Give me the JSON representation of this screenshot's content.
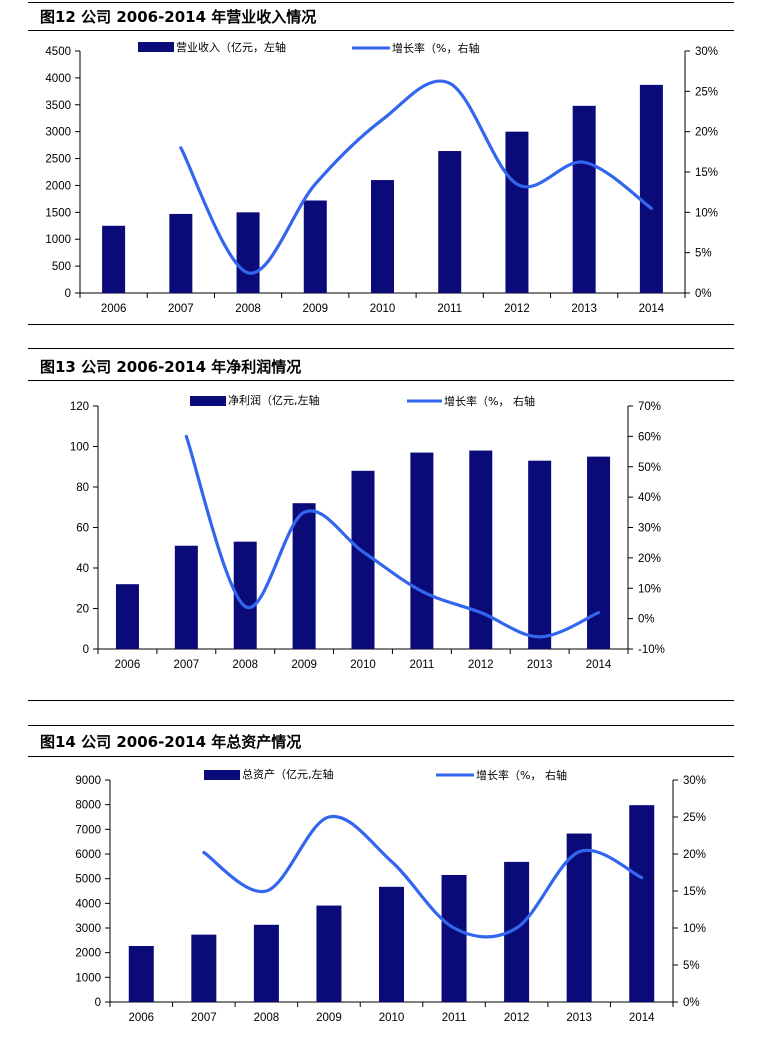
{
  "figures": [
    {
      "title": "图12 公司 2006-2014 年营业收入情况",
      "chart_data": {
        "type": "bar",
        "categories": [
          "2006",
          "2007",
          "2008",
          "2009",
          "2010",
          "2011",
          "2012",
          "2013",
          "2014"
        ],
        "series": [
          {
            "name": "营业收入（亿元，左轴",
            "type": "bar",
            "axis": "left",
            "values": [
              1250,
              1470,
              1500,
              1720,
              2100,
              2640,
              3000,
              3480,
              3870
            ]
          },
          {
            "name": "增长率（%，右轴",
            "type": "line",
            "axis": "right",
            "values": [
              null,
              18,
              2.5,
              13.5,
              21.5,
              26,
              13.5,
              16.2,
              10.5
            ]
          }
        ],
        "left_ticks": [
          "0",
          "500",
          "1000",
          "1500",
          "2000",
          "2500",
          "3000",
          "3500",
          "4000",
          "4500"
        ],
        "right_ticks": [
          "0%",
          "5%",
          "10%",
          "15%",
          "20%",
          "25%",
          "30%"
        ],
        "ylim_left": [
          0,
          4500
        ],
        "ylim_right": [
          0,
          30
        ],
        "legend_position": "top",
        "grid": false
      }
    },
    {
      "title": "图13 公司 2006-2014 年净利润情况",
      "chart_data": {
        "type": "bar",
        "categories": [
          "2006",
          "2007",
          "2008",
          "2009",
          "2010",
          "2011",
          "2012",
          "2013",
          "2014"
        ],
        "series": [
          {
            "name": "净利润（亿元,左轴",
            "type": "bar",
            "axis": "left",
            "values": [
              32,
              51,
              53,
              72,
              88,
              97,
              98,
              93,
              95
            ]
          },
          {
            "name": "增长率（%， 右轴",
            "type": "line",
            "axis": "right",
            "values": [
              null,
              60,
              4,
              35,
              22,
              9,
              2,
              -6,
              2
            ]
          }
        ],
        "left_ticks": [
          "0",
          "20",
          "40",
          "60",
          "80",
          "100",
          "120"
        ],
        "right_ticks": [
          "-10%",
          "0%",
          "10%",
          "20%",
          "30%",
          "40%",
          "50%",
          "60%",
          "70%"
        ],
        "ylim_left": [
          0,
          120
        ],
        "ylim_right": [
          -10,
          70
        ],
        "legend_position": "top",
        "grid": false
      }
    },
    {
      "title": "图14 公司 2006-2014 年总资产情况",
      "chart_data": {
        "type": "bar",
        "categories": [
          "2006",
          "2007",
          "2008",
          "2009",
          "2010",
          "2011",
          "2012",
          "2013",
          "2014"
        ],
        "series": [
          {
            "name": "总资产（亿元,左轴",
            "type": "bar",
            "axis": "left",
            "values": [
              2270,
              2730,
              3130,
              3910,
              4670,
              5150,
              5680,
              6830,
              7980
            ]
          },
          {
            "name": "增长率（%， 右轴",
            "type": "line",
            "axis": "right",
            "values": [
              null,
              20.2,
              15,
              25,
              19,
              10,
              10,
              20.3,
              16.8
            ]
          }
        ],
        "left_ticks": [
          "0",
          "1000",
          "2000",
          "3000",
          "4000",
          "5000",
          "6000",
          "7000",
          "8000",
          "9000"
        ],
        "right_ticks": [
          "0%",
          "5%",
          "10%",
          "15%",
          "20%",
          "25%",
          "30%"
        ],
        "ylim_left": [
          0,
          9000
        ],
        "ylim_right": [
          0,
          30
        ],
        "legend_position": "top",
        "grid": false
      }
    }
  ],
  "colors": {
    "bar": "#0a0a78",
    "line": "#3366ee",
    "axis": "#000000"
  }
}
